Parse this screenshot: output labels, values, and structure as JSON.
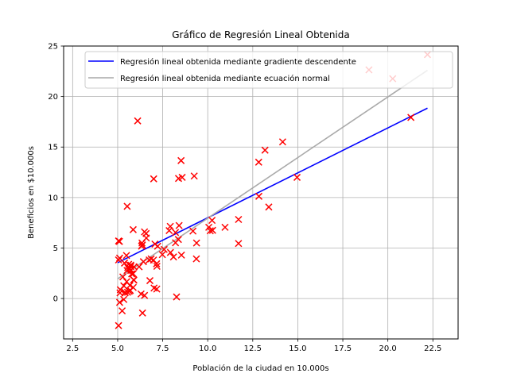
{
  "chart_data": {
    "type": "scatter",
    "title": "Gráfico de Regresión Lineal Obtenida",
    "xlabel": "Población de la ciudad en 10.000s",
    "ylabel": "Beneficios en $10.000s",
    "xlim": [
      2.0,
      23.9
    ],
    "ylim": [
      -4.0,
      25.0
    ],
    "xticks": [
      2.5,
      5.0,
      7.5,
      10.0,
      12.5,
      15.0,
      17.5,
      20.0,
      22.5
    ],
    "xtick_labels": [
      "2.5",
      "5.0",
      "7.5",
      "10.0",
      "12.5",
      "15.0",
      "17.5",
      "20.0",
      "22.5"
    ],
    "yticks": [
      0,
      5,
      10,
      15,
      20,
      25
    ],
    "ytick_labels": [
      "0",
      "5",
      "10",
      "15",
      "20",
      "25"
    ],
    "grid": true,
    "legend_position": "top-right",
    "series": [
      {
        "type": "line",
        "name": "Regresión lineal obtenida mediante gradiente descendente",
        "color": "#0000ff",
        "x": [
          5.0,
          22.2
        ],
        "y": [
          3.55,
          18.85
        ]
      },
      {
        "type": "line",
        "name": "Regresión lineal obtenida mediante ecuación normal",
        "color": "#a9a9a9",
        "x": [
          5.0,
          22.2
        ],
        "y": [
          1.95,
          22.6
        ]
      },
      {
        "type": "scatter",
        "marker": "x",
        "color": "#ff0000",
        "points": [
          [
            6.11,
            17.59
          ],
          [
            5.53,
            9.13
          ],
          [
            8.52,
            13.66
          ],
          [
            7.0,
            11.85
          ],
          [
            5.86,
            6.82
          ],
          [
            8.38,
            11.89
          ],
          [
            7.48,
            4.35
          ],
          [
            8.58,
            12.0
          ],
          [
            6.49,
            6.6
          ],
          [
            5.05,
            3.82
          ],
          [
            5.71,
            3.25
          ],
          [
            14.16,
            15.51
          ],
          [
            5.73,
            3.16
          ],
          [
            8.41,
            7.23
          ],
          [
            5.64,
            0.72
          ],
          [
            5.38,
            3.51
          ],
          [
            6.37,
            5.3
          ],
          [
            5.13,
            0.56
          ],
          [
            6.43,
            3.65
          ],
          [
            7.07,
            5.39
          ],
          [
            6.19,
            3.14
          ],
          [
            20.27,
            21.77
          ],
          [
            5.49,
            4.26
          ],
          [
            6.33,
            5.19
          ],
          [
            5.56,
            3.08
          ],
          [
            18.95,
            22.64
          ],
          [
            12.83,
            13.5
          ],
          [
            10.96,
            7.05
          ],
          [
            13.18,
            14.69
          ],
          [
            22.2,
            24.15
          ],
          [
            5.25,
            -1.22
          ],
          [
            6.59,
            5.99
          ],
          [
            9.25,
            12.13
          ],
          [
            5.89,
            1.85
          ],
          [
            8.21,
            6.54
          ],
          [
            7.93,
            4.56
          ],
          [
            8.1,
            4.12
          ],
          [
            5.61,
            3.39
          ],
          [
            12.84,
            10.12
          ],
          [
            6.35,
            5.5
          ],
          [
            5.41,
            0.56
          ],
          [
            6.86,
            3.93
          ],
          [
            5.7,
            0.8
          ],
          [
            5.05,
            -2.68
          ],
          [
            5.9,
            1.82
          ],
          [
            5.78,
            2.44
          ],
          [
            5.86,
            1.1
          ],
          [
            5.05,
            5.7
          ],
          [
            6.75,
            3.82
          ],
          [
            7.16,
            3.44
          ],
          [
            5.68,
            2.95
          ],
          [
            7.86,
            6.73
          ],
          [
            5.1,
            5.65
          ],
          [
            5.52,
            2.78
          ],
          [
            5.11,
            -0.38
          ],
          [
            5.68,
            1.3
          ],
          [
            5.5,
            1.67
          ],
          [
            5.73,
            2.78
          ],
          [
            5.34,
            1.26
          ],
          [
            7.17,
            0.94
          ],
          [
            6.99,
            3.81
          ],
          [
            5.41,
            0.61
          ],
          [
            6.79,
            1.77
          ],
          [
            5.11,
            4.0
          ],
          [
            7.58,
            4.86
          ],
          [
            6.49,
            0.31
          ],
          [
            13.39,
            9.06
          ],
          [
            5.29,
            2.14
          ],
          [
            11.71,
            7.83
          ],
          [
            9.38,
            5.5
          ],
          [
            5.55,
            0.62
          ],
          [
            6.38,
            -1.43
          ],
          [
            7.18,
            3.19
          ],
          [
            5.34,
            -0.09
          ],
          [
            21.28,
            17.93
          ],
          [
            8.27,
            0.16
          ],
          [
            5.15,
            0.87
          ],
          [
            5.73,
            3.31
          ],
          [
            7.02,
            1.04
          ],
          [
            10.14,
            6.71
          ],
          [
            11.71,
            5.45
          ],
          [
            10.24,
            7.74
          ],
          [
            8.37,
            5.85
          ],
          [
            5.91,
            3.13
          ],
          [
            7.22,
            5.18
          ],
          [
            9.37,
            3.93
          ],
          [
            5.86,
            2.46
          ],
          [
            6.58,
            6.44
          ],
          [
            9.18,
            6.68
          ],
          [
            8.54,
            4.3
          ],
          [
            7.92,
            7.14
          ],
          [
            10.27,
            6.75
          ],
          [
            6.3,
            0.45
          ],
          [
            8.21,
            5.52
          ],
          [
            10.06,
            7.05
          ],
          [
            14.96,
            12.0
          ]
        ]
      }
    ]
  }
}
